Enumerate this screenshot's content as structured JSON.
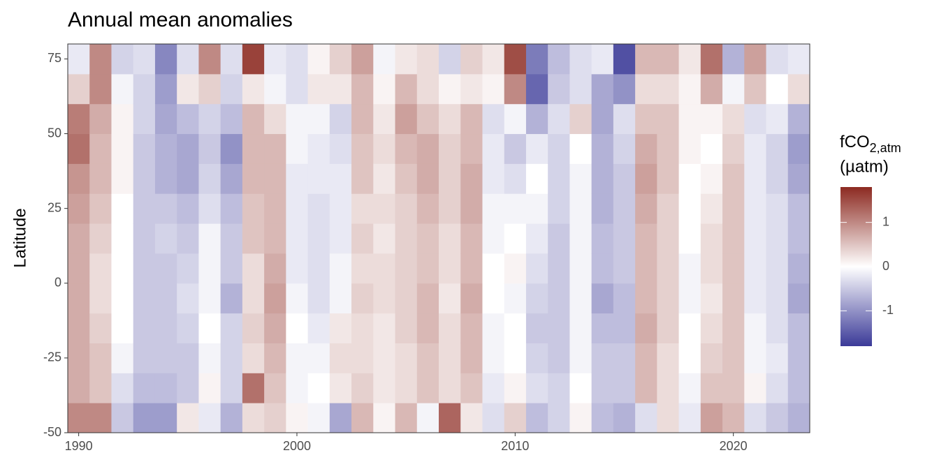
{
  "chart_data": {
    "type": "heatmap",
    "title": "Annual mean anomalies",
    "y_label": "Latitude",
    "legend_title": {
      "main": "fCO",
      "sub": "2,atm",
      "unit": "(µatm)"
    },
    "x": [
      1990,
      1991,
      1992,
      1993,
      1994,
      1995,
      1996,
      1997,
      1998,
      1999,
      2000,
      2001,
      2002,
      2003,
      2004,
      2005,
      2006,
      2007,
      2008,
      2009,
      2010,
      2011,
      2012,
      2013,
      2014,
      2015,
      2016,
      2017,
      2018,
      2019,
      2020,
      2021,
      2022,
      2023
    ],
    "y_bins": [
      -50,
      -40,
      -30,
      -20,
      -10,
      0,
      10,
      20,
      30,
      40,
      50,
      60,
      70,
      80
    ],
    "values": [
      [
        1.0,
        0.7,
        0.7,
        0.7,
        0.7,
        0.7,
        0.7,
        0.8,
        0.9,
        1.2,
        1.1,
        0.4,
        -0.2
      ],
      [
        1.0,
        0.5,
        0.5,
        0.4,
        0.3,
        0.3,
        0.4,
        0.5,
        0.6,
        0.6,
        0.7,
        1.0,
        1.0
      ],
      [
        -0.5,
        -0.3,
        -0.1,
        0,
        0,
        0,
        0,
        0,
        0.1,
        0.1,
        0.1,
        -0.1,
        -0.4
      ],
      [
        -0.9,
        -0.6,
        -0.5,
        -0.5,
        -0.5,
        -0.5,
        -0.5,
        -0.5,
        -0.5,
        -0.5,
        -0.4,
        -0.4,
        -0.3
      ],
      [
        -0.9,
        -0.6,
        -0.5,
        -0.5,
        -0.5,
        -0.5,
        -0.4,
        -0.5,
        -0.7,
        -0.7,
        -0.8,
        -0.9,
        -1.1
      ],
      [
        0.2,
        -0.5,
        -0.5,
        -0.4,
        -0.3,
        -0.4,
        -0.5,
        -0.6,
        -0.8,
        -0.8,
        -0.6,
        0.2,
        -0.3
      ],
      [
        -0.2,
        0.1,
        -0.1,
        0,
        -0.1,
        -0.1,
        -0.1,
        -0.3,
        -0.4,
        -0.5,
        -0.4,
        0.4,
        1.0
      ],
      [
        -0.7,
        -0.4,
        -0.4,
        -0.4,
        -0.7,
        -0.5,
        -0.5,
        -0.6,
        -0.8,
        -1.0,
        -0.6,
        -0.4,
        -0.3
      ],
      [
        0.3,
        1.2,
        0.3,
        0.4,
        0.3,
        0.3,
        0.5,
        0.5,
        0.6,
        0.6,
        0.6,
        0.2,
        1.6
      ],
      [
        0.4,
        0.5,
        0.6,
        0.7,
        0.8,
        0.7,
        0.6,
        0.6,
        0.6,
        0.6,
        0.3,
        -0.1,
        -0.2
      ],
      [
        0.1,
        -0.1,
        -0.1,
        0,
        -0.1,
        -0.2,
        -0.2,
        -0.2,
        -0.2,
        -0.1,
        -0.1,
        -0.3,
        -0.3
      ],
      [
        -0.1,
        0,
        -0.1,
        -0.2,
        -0.3,
        -0.3,
        -0.3,
        -0.3,
        -0.2,
        -0.2,
        -0.1,
        0.2,
        0.1
      ],
      [
        -0.8,
        0.2,
        0.3,
        0.2,
        -0.1,
        -0.1,
        -0.2,
        -0.2,
        -0.2,
        -0.3,
        -0.4,
        0.2,
        0.4
      ],
      [
        0.6,
        0.4,
        0.3,
        0.3,
        0.4,
        0.3,
        0.4,
        0.3,
        0.5,
        0.5,
        0.6,
        0.6,
        0.8
      ],
      [
        0.1,
        0.2,
        0.2,
        0.2,
        0.3,
        0.3,
        0.2,
        0.3,
        0.2,
        0.3,
        0.2,
        0.1,
        -0.1
      ],
      [
        0.6,
        0.3,
        0.3,
        0.4,
        0.4,
        0.4,
        0.4,
        0.4,
        0.5,
        0.6,
        0.8,
        0.6,
        0.2
      ],
      [
        -0.1,
        0.5,
        0.5,
        0.6,
        0.6,
        0.5,
        0.5,
        0.6,
        0.7,
        0.7,
        0.5,
        0.3,
        0.3
      ],
      [
        1.3,
        0.3,
        0.3,
        0.3,
        0.2,
        0.3,
        0.3,
        0.4,
        0.4,
        0.4,
        0.3,
        0.1,
        -0.4
      ],
      [
        0.2,
        0.5,
        0.6,
        0.6,
        0.7,
        0.6,
        0.6,
        0.7,
        0.7,
        0.6,
        0.6,
        0.2,
        0.4
      ],
      [
        -0.3,
        -0.2,
        -0.1,
        -0.1,
        0,
        0,
        -0.1,
        -0.1,
        -0.2,
        -0.2,
        -0.3,
        0.1,
        0.2
      ],
      [
        0.4,
        0.1,
        0,
        0,
        -0.1,
        0.1,
        0,
        -0.1,
        -0.3,
        -0.5,
        -0.1,
        1.0,
        1.5
      ],
      [
        -0.6,
        -0.3,
        -0.4,
        -0.5,
        -0.4,
        -0.3,
        -0.2,
        -0.1,
        0,
        -0.2,
        -0.7,
        -1.4,
        -1.2
      ],
      [
        -0.4,
        -0.4,
        -0.5,
        -0.5,
        -0.5,
        -0.5,
        -0.5,
        -0.4,
        -0.4,
        -0.4,
        -0.3,
        -0.5,
        -0.6
      ],
      [
        0.1,
        0,
        -0.1,
        -0.1,
        -0.1,
        -0.1,
        -0.1,
        -0.1,
        -0.1,
        0,
        0.4,
        -0.3,
        -0.3
      ],
      [
        -0.6,
        -0.5,
        -0.5,
        -0.6,
        -0.8,
        -0.6,
        -0.6,
        -0.7,
        -0.7,
        -0.7,
        -0.8,
        -0.8,
        -0.2
      ],
      [
        -0.7,
        -0.5,
        -0.5,
        -0.6,
        -0.6,
        -0.5,
        -0.5,
        -0.5,
        -0.5,
        -0.4,
        -0.3,
        -1.0,
        -1.6
      ],
      [
        -0.3,
        0.6,
        0.6,
        0.7,
        0.6,
        0.6,
        0.6,
        0.7,
        0.8,
        0.7,
        0.5,
        0.3,
        0.6
      ],
      [
        0.3,
        0.3,
        0.3,
        0.4,
        0.4,
        0.4,
        0.4,
        0.4,
        0.5,
        0.5,
        0.5,
        0.3,
        0.6
      ],
      [
        -0.2,
        -0.1,
        0,
        0,
        -0.1,
        -0.1,
        0,
        0,
        0,
        0.1,
        0.1,
        0.1,
        0.2
      ],
      [
        0.8,
        0.5,
        0.4,
        0.3,
        0.2,
        0.3,
        0.3,
        0.2,
        0.1,
        0,
        0.1,
        0.7,
        1.2
      ],
      [
        0.6,
        0.5,
        0.5,
        0.5,
        0.5,
        0.5,
        0.5,
        0.5,
        0.5,
        0.4,
        0.3,
        -0.1,
        -0.7
      ],
      [
        -0.3,
        0.1,
        -0.1,
        -0.1,
        -0.2,
        -0.2,
        -0.2,
        -0.2,
        -0.2,
        -0.2,
        -0.3,
        0.5,
        0.8
      ],
      [
        -0.5,
        -0.3,
        -0.2,
        -0.3,
        -0.3,
        -0.3,
        -0.3,
        -0.3,
        -0.4,
        -0.4,
        -0.2,
        0,
        -0.3
      ],
      [
        -0.7,
        -0.6,
        -0.6,
        -0.6,
        -0.8,
        -0.7,
        -0.6,
        -0.6,
        -0.8,
        -0.9,
        -0.7,
        0.3,
        -0.2
      ]
    ],
    "xlim": [
      1989.5,
      2023.5
    ],
    "xticks": [
      1990,
      2000,
      2010,
      2020
    ],
    "ylim": [
      -50,
      80
    ],
    "yticks": [
      -50,
      -25,
      0,
      25,
      50,
      75
    ],
    "colors": [
      "#3b3a98",
      "#ffffff",
      "#8c2a21"
    ],
    "clim": [
      -1.8,
      1.8
    ],
    "cticks": [
      -1,
      0,
      1
    ]
  }
}
